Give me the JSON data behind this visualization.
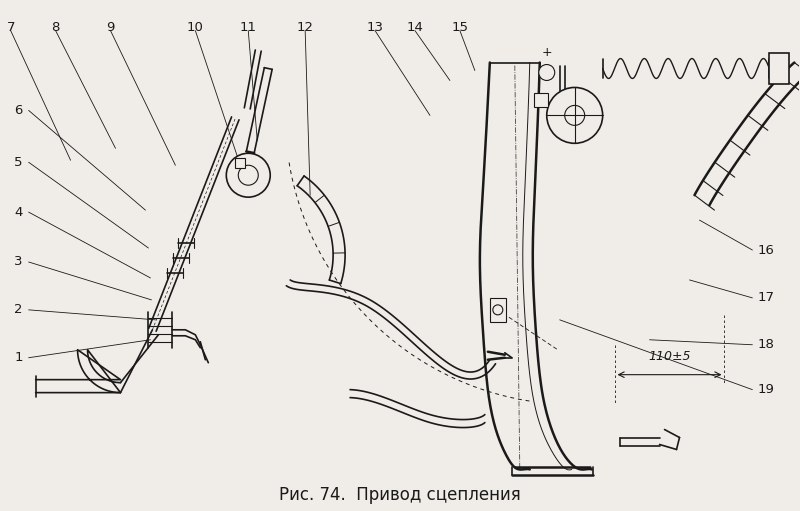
{
  "title": "Рис. 74.  Привод сцепления",
  "title_fontsize": 12,
  "bg_color": "#f0ede8",
  "line_color": "#1a1a1a",
  "label_color": "#1a1a1a",
  "fig_width": 8.0,
  "fig_height": 5.11,
  "dpi": 100,
  "measurement_text": "110±5"
}
